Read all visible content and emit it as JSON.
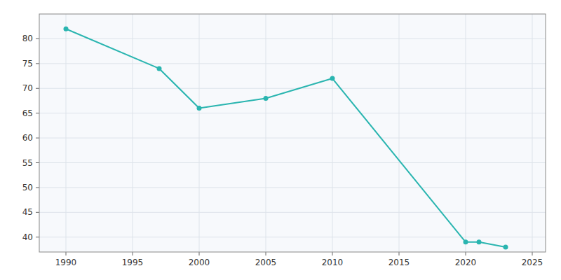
{
  "chart_data": {
    "type": "line",
    "x": [
      1990,
      1997,
      2000,
      2005,
      2010,
      2020,
      2021,
      2023
    ],
    "values": [
      82,
      74,
      66,
      68,
      72,
      39,
      39,
      38
    ],
    "color": "#2ab5b0",
    "marker": "circle",
    "xlim": [
      1988,
      2026
    ],
    "ylim": [
      37,
      85
    ],
    "xticks": [
      1990,
      1995,
      2000,
      2005,
      2010,
      2015,
      2020,
      2025
    ],
    "yticks": [
      40,
      45,
      50,
      55,
      60,
      65,
      70,
      75,
      80
    ],
    "grid": true
  }
}
